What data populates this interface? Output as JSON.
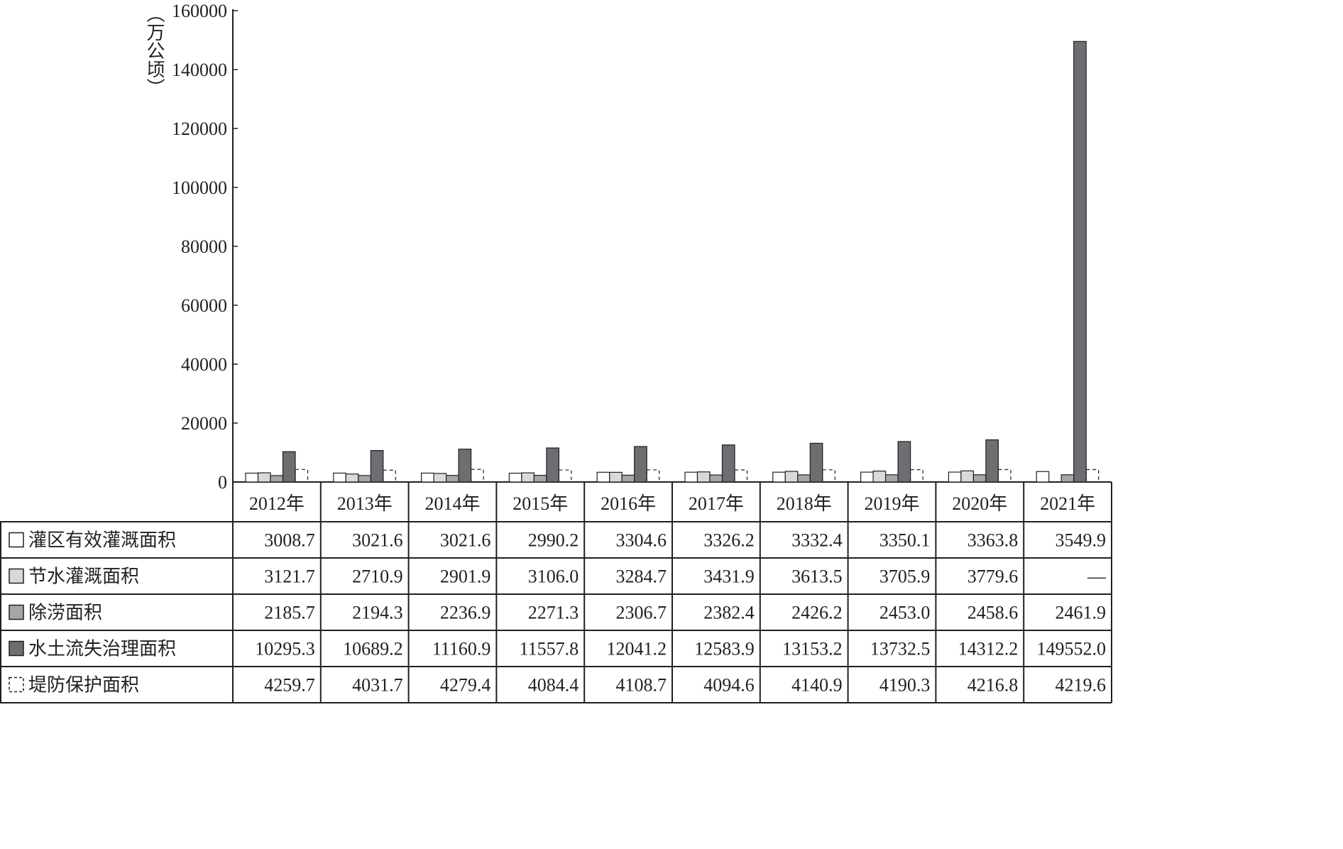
{
  "chart_data": {
    "type": "bar",
    "ylabel": "（万公顷）",
    "ylim": [
      0,
      160000
    ],
    "yticks": [
      "0",
      "20000",
      "40000",
      "60000",
      "80000",
      "100000",
      "120000",
      "140000",
      "160000"
    ],
    "categories": [
      "2012年",
      "2013年",
      "2014年",
      "2015年",
      "2016年",
      "2017年",
      "2018年",
      "2019年",
      "2020年",
      "2021年"
    ],
    "legend_placement": "table-left",
    "series": [
      {
        "name": "灌区有效灌溉面积",
        "fill": "#ffffff",
        "stroke": "#231f20",
        "dashed": false,
        "values": [
          3008.7,
          3021.6,
          3021.6,
          2990.2,
          3304.6,
          3326.2,
          3332.4,
          3350.1,
          3363.8,
          3549.9
        ],
        "labels": [
          "3008.7",
          "3021.6",
          "3021.6",
          "2990.2",
          "3304.6",
          "3326.2",
          "3332.4",
          "3350.1",
          "3363.8",
          "3549.9"
        ]
      },
      {
        "name": "节水灌溉面积",
        "fill": "#d9d9d9",
        "stroke": "#231f20",
        "dashed": false,
        "values": [
          3121.7,
          2710.9,
          2901.9,
          3106.0,
          3284.7,
          3431.9,
          3613.5,
          3705.9,
          3779.6,
          null
        ],
        "labels": [
          "3121.7",
          "2710.9",
          "2901.9",
          "3106.0",
          "3284.7",
          "3431.9",
          "3613.5",
          "3705.9",
          "3779.6",
          "—"
        ]
      },
      {
        "name": "除涝面积",
        "fill": "#a6a6a6",
        "stroke": "#231f20",
        "dashed": false,
        "values": [
          2185.7,
          2194.3,
          2236.9,
          2271.3,
          2306.7,
          2382.4,
          2426.2,
          2453.0,
          2458.6,
          2461.9
        ],
        "labels": [
          "2185.7",
          "2194.3",
          "2236.9",
          "2271.3",
          "2306.7",
          "2382.4",
          "2426.2",
          "2453.0",
          "2458.6",
          "2461.9"
        ]
      },
      {
        "name": "水土流失治理面积",
        "fill": "#6d6e71",
        "stroke": "#231f20",
        "dashed": false,
        "values": [
          10295.3,
          10689.2,
          11160.9,
          11557.8,
          12041.2,
          12583.9,
          13153.2,
          13732.5,
          14312.2,
          149552.0
        ],
        "labels": [
          "10295.3",
          "10689.2",
          "11160.9",
          "11557.8",
          "12041.2",
          "12583.9",
          "13153.2",
          "13732.5",
          "14312.2",
          "149552.0"
        ]
      },
      {
        "name": "堤防保护面积",
        "fill": "#ffffff",
        "stroke": "#231f20",
        "dashed": true,
        "values": [
          4259.7,
          4031.7,
          4279.4,
          4084.4,
          4108.7,
          4094.6,
          4140.9,
          4190.3,
          4216.8,
          4219.6
        ],
        "labels": [
          "4259.7",
          "4031.7",
          "4279.4",
          "4084.4",
          "4108.7",
          "4094.6",
          "4140.9",
          "4190.3",
          "4216.8",
          "4219.6"
        ]
      }
    ]
  }
}
